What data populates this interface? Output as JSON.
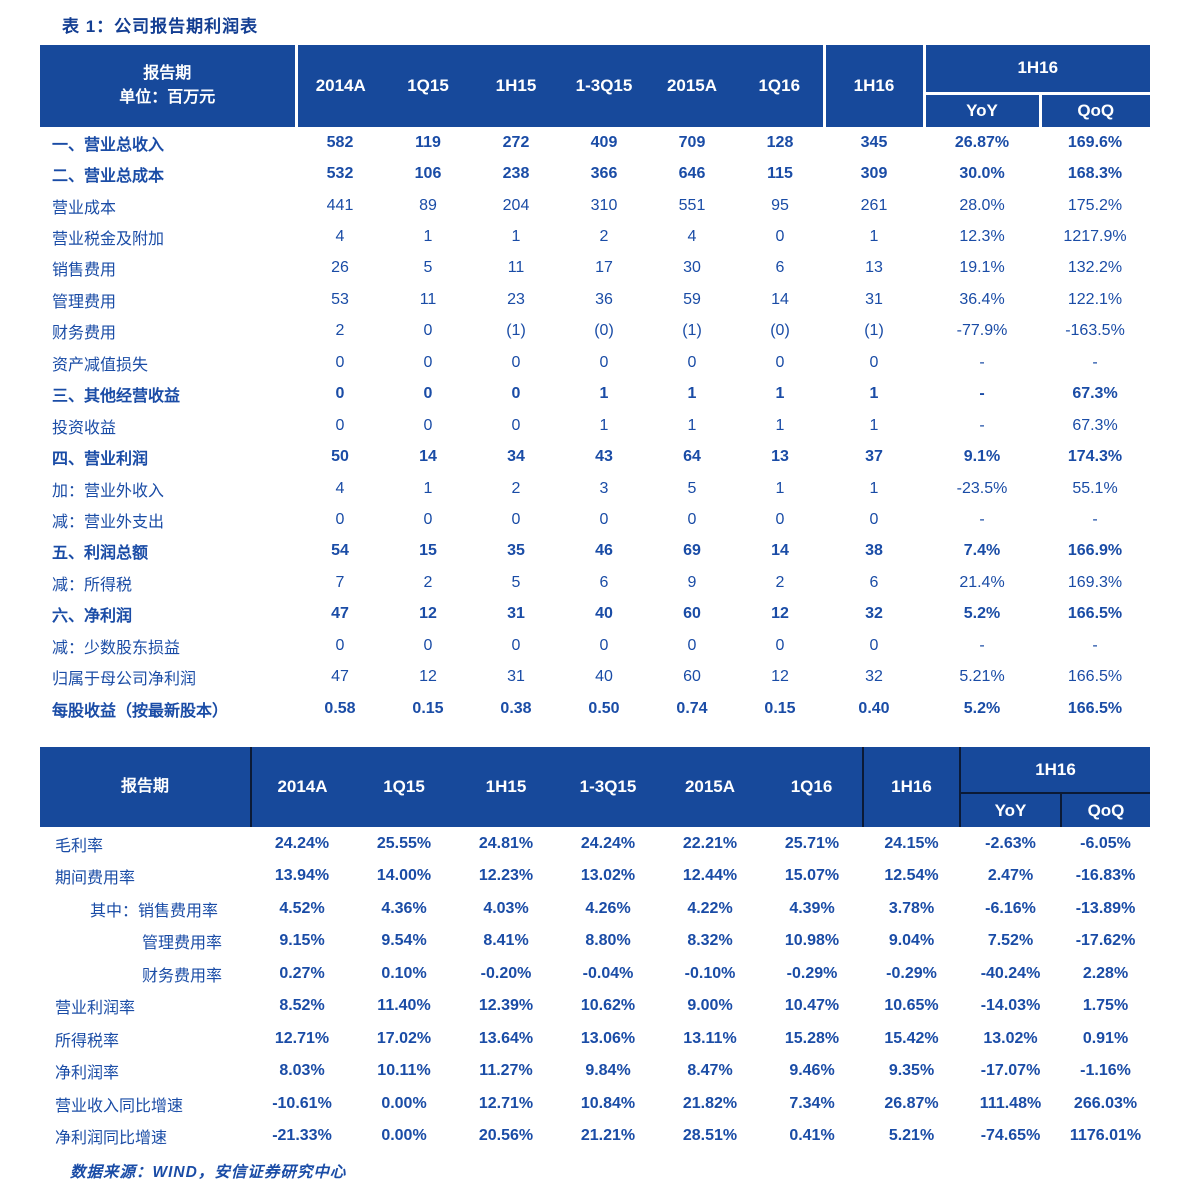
{
  "title": "表 1：公司报告期利润表",
  "footer": "数据来源：WIND，安信证券研究中心",
  "colors": {
    "header_bg": "#17499B",
    "body_text": "#1A4CA6",
    "header_text": "#FFFFFF",
    "table1_divider": "#FFFFFF",
    "table2_divider": "#0B1A36"
  },
  "table1": {
    "header": {
      "label_line1": "报告期",
      "label_line2": "单位：百万元",
      "periods": [
        "2014A",
        "1Q15",
        "1H15",
        "1-3Q15",
        "2015A",
        "1Q16"
      ],
      "h16": "1H16",
      "group": "1H16",
      "yoy": "YoY",
      "qoq": "QoQ"
    },
    "rows": [
      {
        "label": "一、营业总收入",
        "bold": true,
        "values": [
          "582",
          "119",
          "272",
          "409",
          "709",
          "128",
          "345",
          "26.87%",
          "169.6%"
        ]
      },
      {
        "label": "二、营业总成本",
        "bold": true,
        "values": [
          "532",
          "106",
          "238",
          "366",
          "646",
          "115",
          "309",
          "30.0%",
          "168.3%"
        ]
      },
      {
        "label": "营业成本",
        "values": [
          "441",
          "89",
          "204",
          "310",
          "551",
          "95",
          "261",
          "28.0%",
          "175.2%"
        ]
      },
      {
        "label": "营业税金及附加",
        "values": [
          "4",
          "1",
          "1",
          "2",
          "4",
          "0",
          "1",
          "12.3%",
          "1217.9%"
        ]
      },
      {
        "label": "销售费用",
        "values": [
          "26",
          "5",
          "11",
          "17",
          "30",
          "6",
          "13",
          "19.1%",
          "132.2%"
        ]
      },
      {
        "label": "管理费用",
        "values": [
          "53",
          "11",
          "23",
          "36",
          "59",
          "14",
          "31",
          "36.4%",
          "122.1%"
        ]
      },
      {
        "label": "财务费用",
        "values": [
          "2",
          "0",
          "(1)",
          "(0)",
          "(1)",
          "(0)",
          "(1)",
          "-77.9%",
          "-163.5%"
        ]
      },
      {
        "label": "资产减值损失",
        "values": [
          "0",
          "0",
          "0",
          "0",
          "0",
          "0",
          "0",
          "-",
          "-"
        ]
      },
      {
        "label": "三、其他经营收益",
        "bold": true,
        "values": [
          "0",
          "0",
          "0",
          "1",
          "1",
          "1",
          "1",
          "-",
          "67.3%"
        ]
      },
      {
        "label": "投资收益",
        "values": [
          "0",
          "0",
          "0",
          "1",
          "1",
          "1",
          "1",
          "-",
          "67.3%"
        ]
      },
      {
        "label": "四、营业利润",
        "bold": true,
        "values": [
          "50",
          "14",
          "34",
          "43",
          "64",
          "13",
          "37",
          "9.1%",
          "174.3%"
        ]
      },
      {
        "label": "加：营业外收入",
        "values": [
          "4",
          "1",
          "2",
          "3",
          "5",
          "1",
          "1",
          "-23.5%",
          "55.1%"
        ]
      },
      {
        "label": "减：营业外支出",
        "values": [
          "0",
          "0",
          "0",
          "0",
          "0",
          "0",
          "0",
          "-",
          "-"
        ]
      },
      {
        "label": "五、利润总额",
        "bold": true,
        "values": [
          "54",
          "15",
          "35",
          "46",
          "69",
          "14",
          "38",
          "7.4%",
          "166.9%"
        ]
      },
      {
        "label": "减：所得税",
        "values": [
          "7",
          "2",
          "5",
          "6",
          "9",
          "2",
          "6",
          "21.4%",
          "169.3%"
        ]
      },
      {
        "label": "六、净利润",
        "bold": true,
        "values": [
          "47",
          "12",
          "31",
          "40",
          "60",
          "12",
          "32",
          "5.2%",
          "166.5%"
        ]
      },
      {
        "label": "减：少数股东损益",
        "values": [
          "0",
          "0",
          "0",
          "0",
          "0",
          "0",
          "0",
          "-",
          "-"
        ]
      },
      {
        "label": "归属于母公司净利润",
        "values": [
          "47",
          "12",
          "31",
          "40",
          "60",
          "12",
          "32",
          "5.21%",
          "166.5%"
        ]
      },
      {
        "label": "每股收益（按最新股本）",
        "bold": true,
        "values": [
          "0.58",
          "0.15",
          "0.38",
          "0.50",
          "0.74",
          "0.15",
          "0.40",
          "5.2%",
          "166.5%"
        ]
      }
    ]
  },
  "table2": {
    "header": {
      "label": "报告期",
      "periods": [
        "2014A",
        "1Q15",
        "1H15",
        "1-3Q15",
        "2015A",
        "1Q16"
      ],
      "h16": "1H16",
      "group": "1H16",
      "yoy": "YoY",
      "qoq": "QoQ"
    },
    "rows": [
      {
        "label": "毛利率",
        "values": [
          "24.24%",
          "25.55%",
          "24.81%",
          "24.24%",
          "22.21%",
          "25.71%",
          "24.15%",
          "-2.63%",
          "-6.05%"
        ]
      },
      {
        "label": "期间费用率",
        "values": [
          "13.94%",
          "14.00%",
          "12.23%",
          "13.02%",
          "12.44%",
          "15.07%",
          "12.54%",
          "2.47%",
          "-16.83%"
        ]
      },
      {
        "label": "其中：销售费用率",
        "indent": 1,
        "values": [
          "4.52%",
          "4.36%",
          "4.03%",
          "4.26%",
          "4.22%",
          "4.39%",
          "3.78%",
          "-6.16%",
          "-13.89%"
        ]
      },
      {
        "label": "管理费用率",
        "indent": 2,
        "values": [
          "9.15%",
          "9.54%",
          "8.41%",
          "8.80%",
          "8.32%",
          "10.98%",
          "9.04%",
          "7.52%",
          "-17.62%"
        ]
      },
      {
        "label": "财务费用率",
        "indent": 2,
        "values": [
          "0.27%",
          "0.10%",
          "-0.20%",
          "-0.04%",
          "-0.10%",
          "-0.29%",
          "-0.29%",
          "-40.24%",
          "2.28%"
        ]
      },
      {
        "label": "营业利润率",
        "values": [
          "8.52%",
          "11.40%",
          "12.39%",
          "10.62%",
          "9.00%",
          "10.47%",
          "10.65%",
          "-14.03%",
          "1.75%"
        ]
      },
      {
        "label": "所得税率",
        "values": [
          "12.71%",
          "17.02%",
          "13.64%",
          "13.06%",
          "13.11%",
          "15.28%",
          "15.42%",
          "13.02%",
          "0.91%"
        ]
      },
      {
        "label": "净利润率",
        "values": [
          "8.03%",
          "10.11%",
          "11.27%",
          "9.84%",
          "8.47%",
          "9.46%",
          "9.35%",
          "-17.07%",
          "-1.16%"
        ]
      },
      {
        "label": "营业收入同比增速",
        "values": [
          "-10.61%",
          "0.00%",
          "12.71%",
          "10.84%",
          "21.82%",
          "7.34%",
          "26.87%",
          "111.48%",
          "266.03%"
        ]
      },
      {
        "label": "净利润同比增速",
        "values": [
          "-21.33%",
          "0.00%",
          "20.56%",
          "21.21%",
          "28.51%",
          "0.41%",
          "5.21%",
          "-74.65%",
          "1176.01%"
        ]
      }
    ]
  }
}
